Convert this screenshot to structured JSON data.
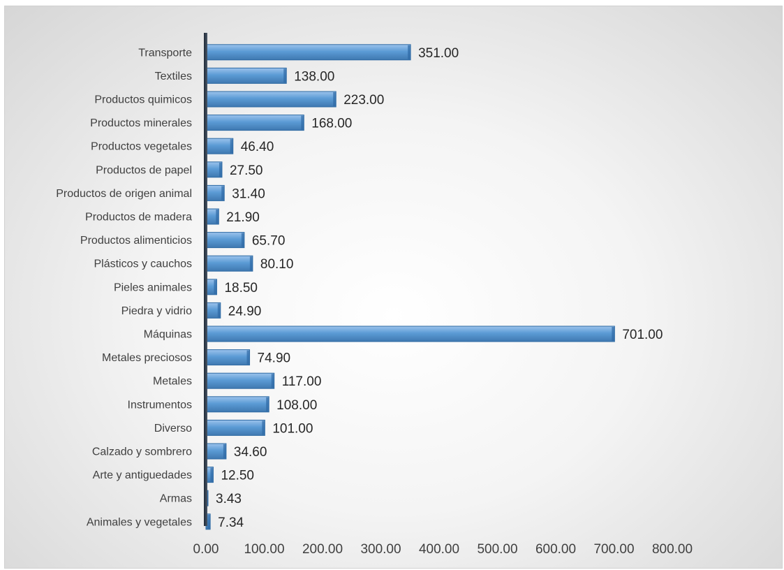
{
  "chart_data": {
    "type": "bar",
    "orientation": "horizontal",
    "bar_color": "#5b9bd5",
    "categories": [
      "Transporte",
      "Textiles",
      "Productos quimicos",
      "Productos minerales",
      "Productos vegetales",
      "Productos de papel",
      "Productos de origen animal",
      "Productos de madera",
      "Productos alimenticios",
      "Plásticos y cauchos",
      "Pieles animales",
      "Piedra y vidrio",
      "Máquinas",
      "Metales preciosos",
      "Metales",
      "Instrumentos",
      "Diverso",
      "Calzado y sombrero",
      "Arte y antiguedades",
      "Armas",
      "Animales y vegetales"
    ],
    "values": [
      351.0,
      138.0,
      223.0,
      168.0,
      46.4,
      27.5,
      31.4,
      21.9,
      65.7,
      80.1,
      18.5,
      24.9,
      701.0,
      74.9,
      117.0,
      108.0,
      101.0,
      34.6,
      12.5,
      3.43,
      7.34
    ],
    "value_labels": [
      "351.00",
      "138.00",
      "223.00",
      "168.00",
      "46.40",
      "27.50",
      "31.40",
      "21.90",
      "65.70",
      "80.10",
      "18.50",
      "24.90",
      "701.00",
      "74.90",
      "117.00",
      "108.00",
      "101.00",
      "34.60",
      "12.50",
      "3.43",
      "7.34"
    ],
    "x_ticks": [
      "0.00",
      "100.00",
      "200.00",
      "300.00",
      "400.00",
      "500.00",
      "600.00",
      "700.00",
      "800.00"
    ],
    "xlim": [
      0,
      800
    ],
    "title": "",
    "xlabel": "",
    "ylabel": "",
    "grid": false,
    "legend": false
  }
}
